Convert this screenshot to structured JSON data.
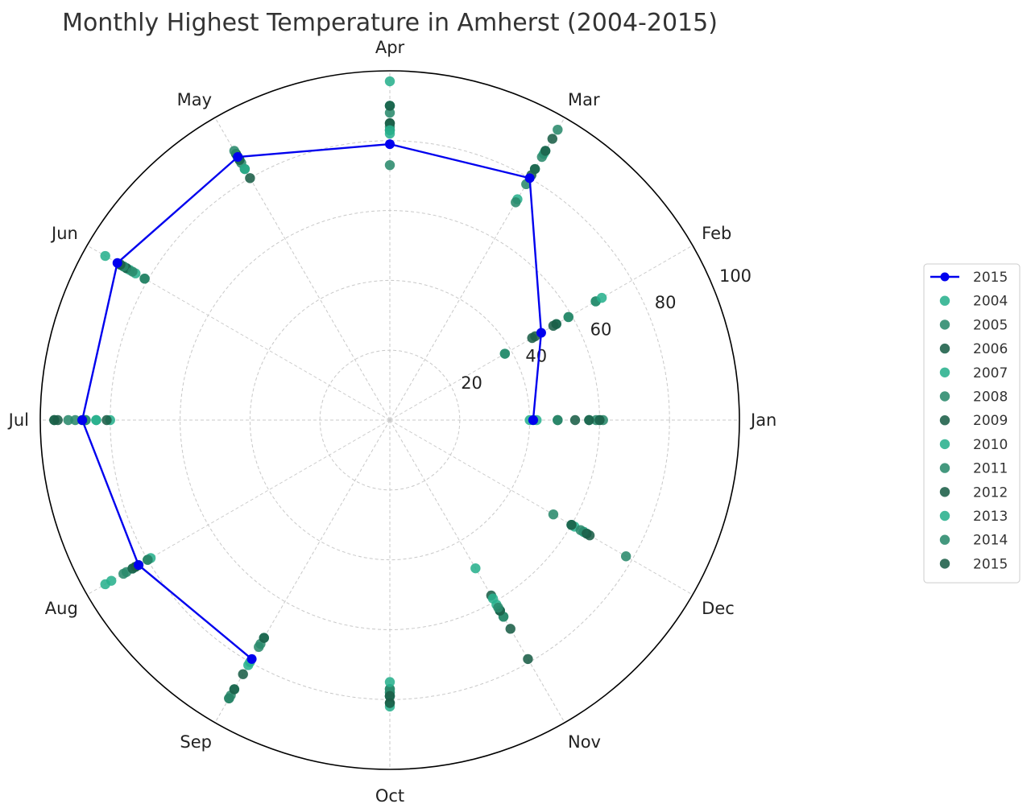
{
  "chart_data": {
    "type": "scatter",
    "projection": "polar",
    "title": "Monthly Highest Temperature in Amherst (2004-2015)",
    "angular_axis": {
      "labels": [
        "Jan",
        "Feb",
        "Mar",
        "Apr",
        "May",
        "Jun",
        "Jul",
        "Aug",
        "Sep",
        "Oct",
        "Nov",
        "Dec"
      ],
      "direction": "counter-clockwise",
      "start": "Jan at 0 degrees (east)"
    },
    "radial_axis": {
      "range": [
        0,
        100
      ],
      "ticks": [
        20,
        40,
        60,
        80,
        100
      ],
      "tick_labels": [
        "20",
        "40",
        "60",
        "80",
        "100"
      ]
    },
    "grid": true,
    "legend_position": "right",
    "colors": {
      "line_2015": "#0000ee",
      "2004": "#29b08d",
      "2005": "#2a8a6c",
      "2006": "#1b5e48",
      "2007": "#29b08d",
      "2008": "#2a8a6c",
      "2009": "#1b5e48",
      "2010": "#29b08d",
      "2011": "#2a8a6c",
      "2012": "#1b5e48",
      "2013": "#29b08d",
      "2014": "#2a8a6c",
      "2015": "#1b5e48"
    },
    "line_series": {
      "name": "2015",
      "values": [
        41,
        50,
        80,
        79,
        87,
        90,
        88,
        83,
        79
      ]
    },
    "series": [
      {
        "name": "2004",
        "values": [
          42,
          38,
          73,
          97,
          87,
          87,
          80,
          79,
          72,
          78,
          63,
          65
        ]
      },
      {
        "name": "2005",
        "values": [
          41,
          38,
          78,
          90,
          85,
          89,
          96,
          83,
          74,
          79,
          65,
          60
        ]
      },
      {
        "name": "2006",
        "values": [
          48,
          48,
          81,
          83,
          80,
          81,
          95,
          80,
          72,
          79,
          69,
          64
        ]
      },
      {
        "name": "2007",
        "values": [
          40,
          55,
          83,
          82,
          88,
          86,
          84,
          94,
          89,
          79,
          49,
          61
        ]
      },
      {
        "name": "2008",
        "values": [
          48,
          59,
          72,
          73,
          87,
          81,
          92,
          87,
          75,
          77,
          65,
          78
        ]
      },
      {
        "name": "2009",
        "values": [
          53,
          55,
          83,
          85,
          83,
          87,
          96,
          84,
          84,
          81,
          58,
          66
        ]
      },
      {
        "name": "2010",
        "values": [
          57,
          68,
          88,
          90,
          83,
          84,
          87,
          85,
          80,
          82,
          59,
          64
        ]
      },
      {
        "name": "2011",
        "values": [
          59,
          68,
          87,
          84,
          87,
          85,
          87,
          80,
          91,
          77,
          63,
          63
        ]
      },
      {
        "name": "2012",
        "values": [
          57,
          47,
          93,
          85,
          88,
          88,
          88,
          85,
          92,
          81,
          63,
          65
        ]
      },
      {
        "name": "2013",
        "values": [
          60,
          70,
          89,
          83,
          86,
          94,
          84,
          92,
          81,
          75,
          61,
          60
        ]
      },
      {
        "name": "2014",
        "values": [
          61,
          59,
          96,
          88,
          89,
          88,
          90,
          88,
          92,
          78,
          62,
          54
        ]
      },
      {
        "name": "2015",
        "values": [
          60,
          54,
          89,
          90,
          86,
          89,
          81,
          84,
          89,
          79,
          79,
          60
        ]
      }
    ]
  }
}
